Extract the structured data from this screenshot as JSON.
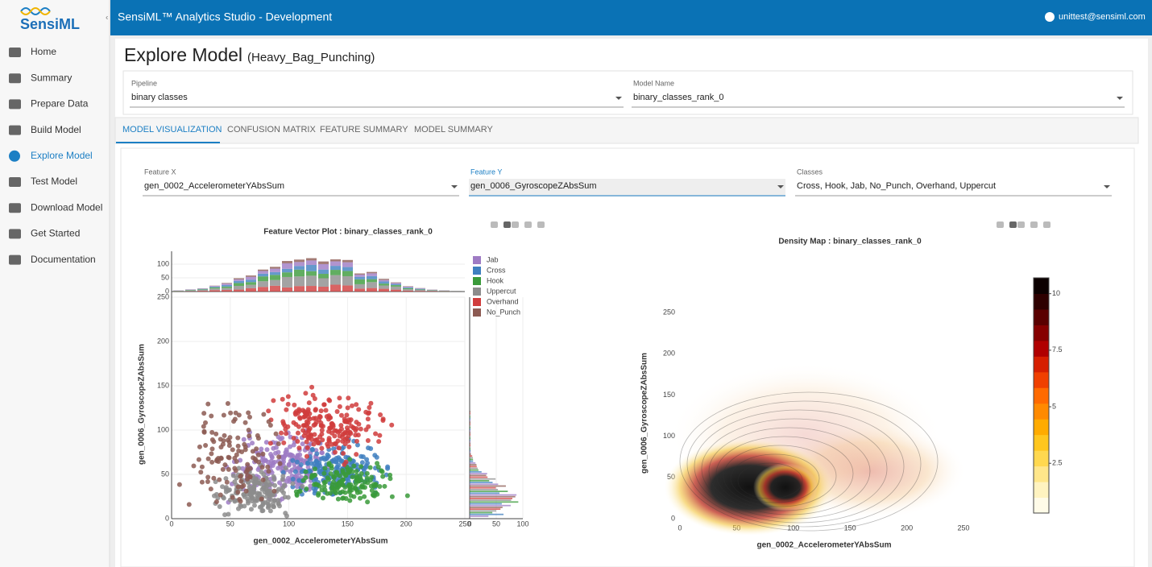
{
  "header": {
    "logo": "SensiML",
    "title": "SensiML™ Analytics Studio - Development",
    "user": "unittest@sensiml.com"
  },
  "nav": [
    "Home",
    "Summary",
    "Prepare Data",
    "Build Model",
    "Explore Model",
    "Test Model",
    "Download Model",
    "Get Started",
    "Documentation"
  ],
  "active_nav": 4,
  "page": {
    "title": "Explore Model",
    "subtitle": "(Heavy_Bag_Punching)"
  },
  "selects": [
    {
      "label": "Pipeline",
      "value": "binary classes"
    },
    {
      "label": "Model Name",
      "value": "binary_classes_rank_0"
    }
  ],
  "tabs": [
    "MODEL VISUALIZATION",
    "CONFUSION MATRIX",
    "FEATURE SUMMARY",
    "MODEL SUMMARY"
  ],
  "filters": [
    {
      "label": "Feature X",
      "value": "gen_0002_AccelerometerYAbsSum"
    },
    {
      "label": "Feature Y",
      "value": "gen_0006_GyroscopeZAbsSum"
    },
    {
      "label": "Classes",
      "value": "Cross, Hook, Jab, No_Punch, Overhand, Uppercut"
    }
  ],
  "scatter": {
    "title": "Feature Vector Plot : binary_classes_rank_0",
    "x_label": "gen_0002_AccelerometerYAbsSum",
    "y_label": "gen_0006_GyroscopeZAbsSum",
    "xlim": [
      0,
      250
    ],
    "xticks": [
      0,
      50,
      100,
      150,
      200,
      250
    ],
    "ylim": [
      0,
      250
    ],
    "yticks": [
      0,
      50,
      100,
      150,
      200,
      250
    ],
    "hist_ylim": [
      0,
      100
    ],
    "hist_yticks": [
      0,
      50,
      100
    ],
    "side_xlim": [
      0,
      100
    ],
    "side_xticks": [
      0,
      50,
      100
    ],
    "legend": [
      {
        "name": "Jab",
        "color": "#9e7bc4"
      },
      {
        "name": "Cross",
        "color": "#3f7fbf"
      },
      {
        "name": "Hook",
        "color": "#3a9a3a"
      },
      {
        "name": "Uppercut",
        "color": "#8c8c8c"
      },
      {
        "name": "Overhand",
        "color": "#d03c3c"
      },
      {
        "name": "No_Punch",
        "color": "#8c5a52"
      }
    ]
  },
  "density": {
    "title": "Density Map : binary_classes_rank_0",
    "x_label": "gen_0002_AccelerometerYAbsSum",
    "y_label": "gen_0006_GyroscopeZAbsSum",
    "xlim": [
      0,
      250
    ],
    "xticks": [
      0,
      50,
      100,
      150,
      200,
      250
    ],
    "ylim": [
      0,
      250
    ],
    "yticks": [
      0,
      50,
      100,
      150,
      200,
      250
    ],
    "colorbar_lim": [
      0.3,
      10.7
    ],
    "colorbar_ticks": [
      2.5,
      5,
      7.5,
      10
    ]
  }
}
